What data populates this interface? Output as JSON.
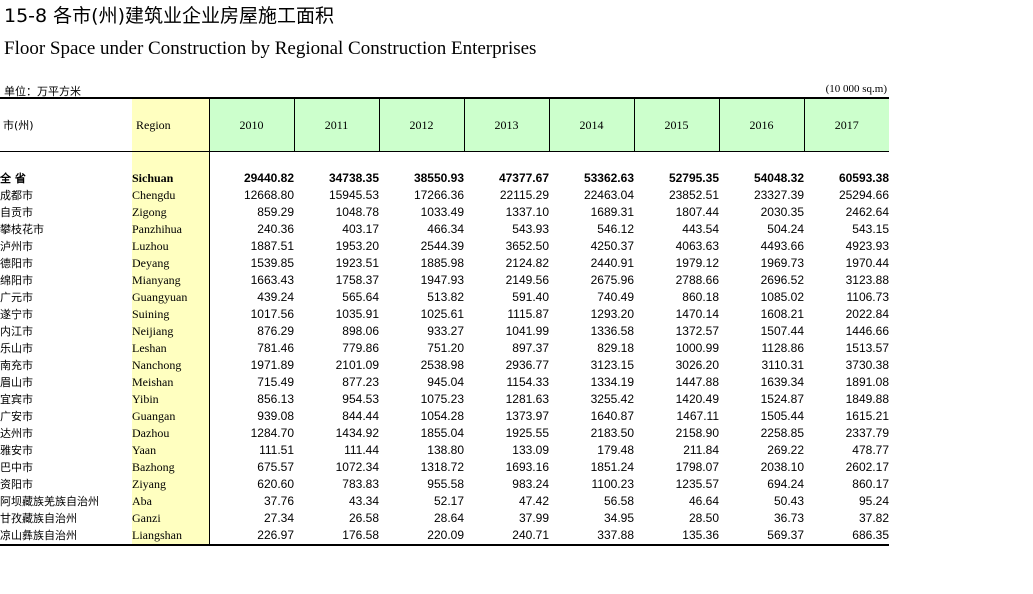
{
  "title_cn": "15-8 各市(州)建筑业企业房屋施工面积",
  "title_en": "Floor Space under Construction by Regional Construction Enterprises",
  "unit_cn": "单位：万平方米",
  "unit_en": "(10 000 sq.m)",
  "headers": {
    "region_cn": "市(州)",
    "region_en": "Region",
    "years": [
      "2010",
      "2011",
      "2012",
      "2013",
      "2014",
      "2015",
      "2016",
      "2017"
    ]
  },
  "rows": [
    {
      "cn": "全  省",
      "en": "Sichuan",
      "values": [
        "29440.82",
        "34738.35",
        "38550.93",
        "47377.67",
        "53362.63",
        "52795.35",
        "54048.32",
        "60593.38"
      ]
    },
    {
      "cn": "成都市",
      "en": "Chengdu",
      "values": [
        "12668.80",
        "15945.53",
        "17266.36",
        "22115.29",
        "22463.04",
        "23852.51",
        "23327.39",
        "25294.66"
      ]
    },
    {
      "cn": "自贡市",
      "en": "Zigong",
      "values": [
        "859.29",
        "1048.78",
        "1033.49",
        "1337.10",
        "1689.31",
        "1807.44",
        "2030.35",
        "2462.64"
      ]
    },
    {
      "cn": "攀枝花市",
      "en": "Panzhihua",
      "values": [
        "240.36",
        "403.17",
        "466.34",
        "543.93",
        "546.12",
        "443.54",
        "504.24",
        "543.15"
      ]
    },
    {
      "cn": "泸州市",
      "en": "Luzhou",
      "values": [
        "1887.51",
        "1953.20",
        "2544.39",
        "3652.50",
        "4250.37",
        "4063.63",
        "4493.66",
        "4923.93"
      ]
    },
    {
      "cn": "德阳市",
      "en": "Deyang",
      "values": [
        "1539.85",
        "1923.51",
        "1885.98",
        "2124.82",
        "2440.91",
        "1979.12",
        "1969.73",
        "1970.44"
      ]
    },
    {
      "cn": "绵阳市",
      "en": "Mianyang",
      "values": [
        "1663.43",
        "1758.37",
        "1947.93",
        "2149.56",
        "2675.96",
        "2788.66",
        "2696.52",
        "3123.88"
      ]
    },
    {
      "cn": "广元市",
      "en": "Guangyuan",
      "values": [
        "439.24",
        "565.64",
        "513.82",
        "591.40",
        "740.49",
        "860.18",
        "1085.02",
        "1106.73"
      ]
    },
    {
      "cn": "遂宁市",
      "en": "Suining",
      "values": [
        "1017.56",
        "1035.91",
        "1025.61",
        "1115.87",
        "1293.20",
        "1470.14",
        "1608.21",
        "2022.84"
      ]
    },
    {
      "cn": "内江市",
      "en": "Neijiang",
      "values": [
        "876.29",
        "898.06",
        "933.27",
        "1041.99",
        "1336.58",
        "1372.57",
        "1507.44",
        "1446.66"
      ]
    },
    {
      "cn": "乐山市",
      "en": "Leshan",
      "values": [
        "781.46",
        "779.86",
        "751.20",
        "897.37",
        "829.18",
        "1000.99",
        "1128.86",
        "1513.57"
      ]
    },
    {
      "cn": "南充市",
      "en": "Nanchong",
      "values": [
        "1971.89",
        "2101.09",
        "2538.98",
        "2936.77",
        "3123.15",
        "3026.20",
        "3110.31",
        "3730.38"
      ]
    },
    {
      "cn": "眉山市",
      "en": "Meishan",
      "values": [
        "715.49",
        "877.23",
        "945.04",
        "1154.33",
        "1334.19",
        "1447.88",
        "1639.34",
        "1891.08"
      ]
    },
    {
      "cn": "宜宾市",
      "en": "Yibin",
      "values": [
        "856.13",
        "954.53",
        "1075.23",
        "1281.63",
        "3255.42",
        "1420.49",
        "1524.87",
        "1849.88"
      ]
    },
    {
      "cn": "广安市",
      "en": "Guangan",
      "values": [
        "939.08",
        "844.44",
        "1054.28",
        "1373.97",
        "1640.87",
        "1467.11",
        "1505.44",
        "1615.21"
      ]
    },
    {
      "cn": "达州市",
      "en": "Dazhou",
      "values": [
        "1284.70",
        "1434.92",
        "1855.04",
        "1925.55",
        "2183.50",
        "2158.90",
        "2258.85",
        "2337.79"
      ]
    },
    {
      "cn": "雅安市",
      "en": "Yaan",
      "values": [
        "111.51",
        "111.44",
        "138.80",
        "133.09",
        "179.48",
        "211.84",
        "269.22",
        "478.77"
      ]
    },
    {
      "cn": "巴中市",
      "en": "Bazhong",
      "values": [
        "675.57",
        "1072.34",
        "1318.72",
        "1693.16",
        "1851.24",
        "1798.07",
        "2038.10",
        "2602.17"
      ]
    },
    {
      "cn": "资阳市",
      "en": "Ziyang",
      "values": [
        "620.60",
        "783.83",
        "955.58",
        "983.24",
        "1100.23",
        "1235.57",
        "694.24",
        "860.17"
      ]
    },
    {
      "cn": "阿坝藏族羌族自治州",
      "en": "Aba",
      "values": [
        "37.76",
        "43.34",
        "52.17",
        "47.42",
        "56.58",
        "46.64",
        "50.43",
        "95.24"
      ]
    },
    {
      "cn": "甘孜藏族自治州",
      "en": "Ganzi",
      "values": [
        "27.34",
        "26.58",
        "28.64",
        "37.99",
        "34.95",
        "28.50",
        "36.73",
        "37.82"
      ]
    },
    {
      "cn": "凉山彝族自治州",
      "en": "Liangshan",
      "values": [
        "226.97",
        "176.58",
        "220.09",
        "240.71",
        "337.88",
        "135.36",
        "569.37",
        "686.35"
      ]
    }
  ]
}
